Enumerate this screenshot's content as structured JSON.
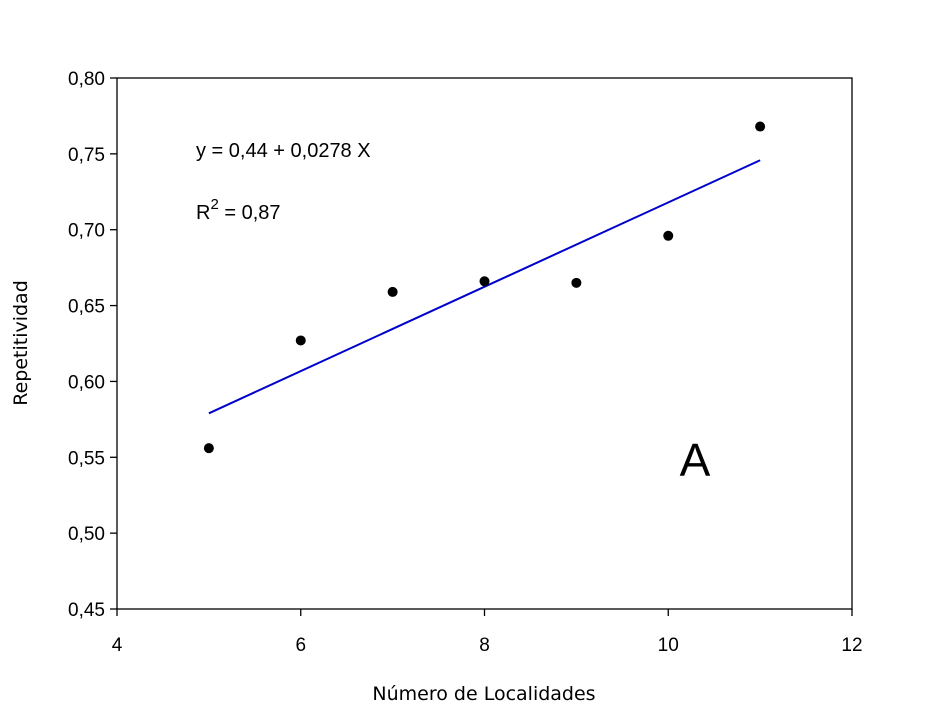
{
  "chart_data": {
    "type": "scatter",
    "title": "",
    "xlabel": "Número de Localidades",
    "ylabel": "Repetitividad",
    "xlim": [
      4,
      12
    ],
    "ylim": [
      0.45,
      0.8
    ],
    "x_ticks": [
      4,
      6,
      8,
      10,
      12
    ],
    "x_tick_labels": [
      "4",
      "6",
      "8",
      "10",
      "12"
    ],
    "y_ticks": [
      0.45,
      0.5,
      0.55,
      0.6,
      0.65,
      0.7,
      0.75,
      0.8
    ],
    "y_tick_labels": [
      "0,45",
      "0,50",
      "0,55",
      "0,60",
      "0,65",
      "0,70",
      "0,75",
      "0,80"
    ],
    "grid": false,
    "series": [
      {
        "type": "scatter",
        "color": "#000000",
        "x": [
          5,
          6,
          7,
          8,
          9,
          10,
          11
        ],
        "y": [
          0.556,
          0.627,
          0.659,
          0.666,
          0.665,
          0.696,
          0.768
        ]
      }
    ],
    "regression": {
      "color": "#0000cc",
      "intercept": 0.44,
      "slope": 0.0278,
      "x_range": [
        5,
        11
      ]
    },
    "annotations": {
      "equation": "y = 0,44 + 0,0278 X",
      "r2_prefix": "R",
      "r2_exponent": "2",
      "r2_value": " = 0,87",
      "panel_label": "A"
    }
  }
}
